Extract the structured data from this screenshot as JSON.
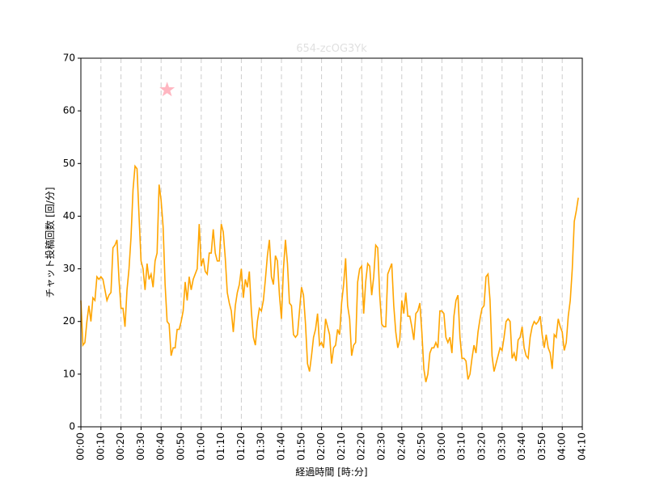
{
  "chart_data": {
    "type": "line",
    "title": "654-zcOG3Yk",
    "x_label": "経過時間 [時:分]",
    "y_label": "チャット投稿回数 [回/分]",
    "color": "#ffa500",
    "x": [
      0,
      1,
      2,
      3,
      4,
      5,
      6,
      7,
      8,
      9,
      10,
      11,
      12,
      13,
      14,
      15,
      16,
      17,
      18,
      19,
      20,
      21,
      22,
      23,
      24,
      25,
      26,
      27,
      28,
      29,
      30,
      31,
      32,
      33,
      34,
      35,
      36,
      37,
      38,
      39,
      40,
      41,
      42,
      43,
      44,
      45,
      46,
      47,
      48,
      49,
      50,
      51,
      52,
      53,
      54,
      55,
      56,
      57,
      58,
      59,
      60,
      61,
      62,
      63,
      64,
      65,
      66,
      67,
      68,
      69,
      70,
      71,
      72,
      73,
      74,
      75,
      76,
      77,
      78,
      79,
      80,
      81,
      82,
      83,
      84,
      85,
      86,
      87,
      88,
      89,
      90,
      91,
      92,
      93,
      94,
      95,
      96,
      97,
      98,
      99,
      100,
      101,
      102,
      103,
      104,
      105,
      106,
      107,
      108,
      109,
      110,
      111,
      112,
      113,
      114,
      115,
      116,
      117,
      118,
      119,
      120,
      121,
      122,
      123,
      124,
      125,
      126,
      127,
      128,
      129,
      130,
      131,
      132,
      133,
      134,
      135,
      136,
      137,
      138,
      139,
      140,
      141,
      142,
      143,
      144,
      145,
      146,
      147,
      148,
      149,
      150,
      151,
      152,
      153,
      154,
      155,
      156,
      157,
      158,
      159,
      160,
      161,
      162,
      163,
      164,
      165,
      166,
      167,
      168,
      169,
      170,
      171,
      172,
      173,
      174,
      175,
      176,
      177,
      178,
      179,
      180,
      181,
      182,
      183,
      184,
      185,
      186,
      187,
      188,
      189,
      190,
      191,
      192,
      193,
      194,
      195,
      196,
      197,
      198,
      199,
      200,
      201,
      202,
      203,
      204,
      205,
      206,
      207,
      208,
      209,
      210,
      211,
      212,
      213,
      214,
      215,
      216,
      217,
      218,
      219,
      220,
      221,
      222,
      223,
      224,
      225,
      226,
      227,
      228,
      229,
      230,
      231,
      232,
      233,
      234,
      235,
      236,
      237,
      238,
      239,
      240,
      241,
      242,
      243,
      244,
      245,
      246,
      247,
      248
    ],
    "values": [
      24,
      15.5,
      16,
      20,
      23,
      20,
      24.5,
      24,
      28.5,
      28,
      28.5,
      28,
      26,
      24,
      25,
      25.5,
      34,
      34.5,
      35.5,
      28,
      22.5,
      22.5,
      19,
      26,
      30,
      36,
      45,
      49.5,
      49,
      40,
      31.5,
      30,
      26,
      31,
      28,
      29,
      26.5,
      31.5,
      33,
      46,
      43,
      38,
      27,
      20,
      19.5,
      13.5,
      15,
      15,
      18.5,
      18.5,
      20,
      22,
      27.5,
      24,
      28.5,
      26,
      28,
      29,
      30,
      38.5,
      30.5,
      32,
      29.5,
      29,
      33,
      33,
      37.5,
      33,
      31.5,
      31.5,
      38.5,
      37,
      32,
      25.5,
      23.5,
      22,
      18,
      23,
      25.5,
      27,
      30,
      24.5,
      28,
      26.5,
      29.5,
      22,
      17,
      15.5,
      20,
      22.5,
      22,
      24,
      28,
      32.5,
      35.5,
      28.5,
      27,
      32.5,
      31.5,
      25,
      20.5,
      30,
      35.5,
      31,
      23.5,
      23,
      17.5,
      17,
      17.5,
      22,
      26.5,
      25,
      19.5,
      12,
      10.5,
      13.5,
      17,
      18.5,
      21.5,
      15.5,
      16,
      15,
      20.5,
      19,
      17.5,
      12,
      15,
      15.5,
      18.5,
      17.5,
      23.5,
      27,
      32,
      23,
      20.5,
      13.5,
      15.5,
      16,
      27.5,
      30,
      30.5,
      21.5,
      27.5,
      31,
      30.5,
      25,
      28.5,
      34.5,
      34,
      25,
      19.5,
      19,
      19,
      29,
      30,
      31,
      23,
      18,
      15,
      16.5,
      24,
      21.5,
      25.5,
      21,
      21,
      19,
      16.5,
      21.5,
      22,
      23.5,
      18,
      11,
      8.5,
      10,
      14,
      15,
      15,
      16,
      15,
      22,
      22,
      21.5,
      17,
      16,
      17,
      14,
      21,
      24,
      25,
      17,
      13,
      13,
      12.5,
      9,
      10,
      13,
      15.5,
      14,
      18,
      20.5,
      22.5,
      23,
      28.5,
      29,
      24,
      13.5,
      10.5,
      12,
      13.5,
      15,
      14.5,
      17,
      20,
      20.5,
      20,
      13,
      14,
      12.5,
      16.5,
      17,
      19,
      15,
      13.5,
      13,
      17,
      19,
      20,
      19.5,
      20,
      21,
      17.5,
      15,
      17.5,
      15,
      14,
      11,
      17.5,
      17,
      20.5,
      19,
      18,
      14.5,
      16,
      21,
      24,
      30,
      39,
      41,
      43.5
    ],
    "marker": {
      "x": 43,
      "y": 64,
      "color": "#ffb6c1"
    },
    "xlim": [
      0,
      250
    ],
    "ylim": [
      0,
      70
    ],
    "xticks": [
      {
        "value": 0,
        "label": "00:00"
      },
      {
        "value": 10,
        "label": "00:10"
      },
      {
        "value": 20,
        "label": "00:20"
      },
      {
        "value": 30,
        "label": "00:30"
      },
      {
        "value": 40,
        "label": "00:40"
      },
      {
        "value": 50,
        "label": "00:50"
      },
      {
        "value": 60,
        "label": "01:00"
      },
      {
        "value": 70,
        "label": "01:10"
      },
      {
        "value": 80,
        "label": "01:20"
      },
      {
        "value": 90,
        "label": "01:30"
      },
      {
        "value": 100,
        "label": "01:40"
      },
      {
        "value": 110,
        "label": "01:50"
      },
      {
        "value": 120,
        "label": "02:00"
      },
      {
        "value": 130,
        "label": "02:10"
      },
      {
        "value": 140,
        "label": "02:20"
      },
      {
        "value": 150,
        "label": "02:30"
      },
      {
        "value": 160,
        "label": "02:40"
      },
      {
        "value": 170,
        "label": "02:50"
      },
      {
        "value": 180,
        "label": "03:00"
      },
      {
        "value": 190,
        "label": "03:10"
      },
      {
        "value": 200,
        "label": "03:20"
      },
      {
        "value": 210,
        "label": "03:30"
      },
      {
        "value": 220,
        "label": "03:40"
      },
      {
        "value": 230,
        "label": "03:50"
      },
      {
        "value": 240,
        "label": "04:00"
      },
      {
        "value": 250,
        "label": "04:10"
      }
    ],
    "yticks": [
      0,
      10,
      20,
      30,
      40,
      50,
      60,
      70
    ],
    "x_grid": true
  }
}
